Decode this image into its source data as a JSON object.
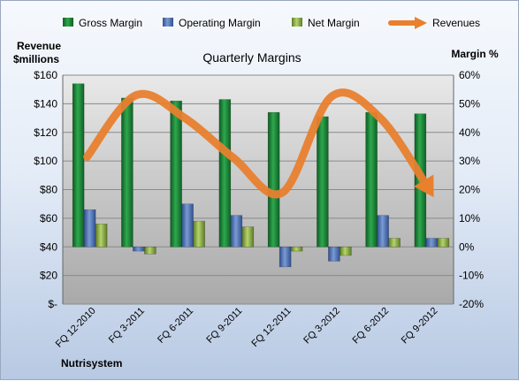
{
  "chart_data": {
    "type": "bar",
    "title": "Quarterly Margins",
    "company": "Nutrisystem",
    "left_axis_title": [
      "Revenue",
      "$millions"
    ],
    "right_axis_title": "Margin %",
    "categories": [
      "FQ 12-2010",
      "FQ 3-2011",
      "FQ 6-2011",
      "FQ 9-2011",
      "FQ 12-2011",
      "FQ 3-2012",
      "FQ 6-2012",
      "FQ 9-2012"
    ],
    "left_ticks": [
      "$-",
      "$20",
      "$40",
      "$60",
      "$80",
      "$100",
      "$120",
      "$140",
      "$160"
    ],
    "right_ticks": [
      "-20%",
      "-10%",
      "0%",
      "10%",
      "20%",
      "30%",
      "40%",
      "50%",
      "60%"
    ],
    "left_range": [
      0,
      160
    ],
    "right_range": [
      -20,
      60
    ],
    "legend_position": "top",
    "series": [
      {
        "name": "Gross Margin",
        "axis": "right",
        "color": "#1f8a3d",
        "values": [
          57,
          52,
          51,
          51.5,
          47,
          45.5,
          47,
          46.5
        ]
      },
      {
        "name": "Operating Margin",
        "axis": "right",
        "color": "#4f71b3",
        "values": [
          13,
          -1.5,
          15,
          11,
          -7,
          -5,
          11,
          3
        ]
      },
      {
        "name": "Net Margin",
        "axis": "right",
        "color": "#8eb04a",
        "values": [
          8,
          -2.5,
          9,
          7,
          -1.5,
          -3,
          3,
          3
        ]
      },
      {
        "name": "Revenues",
        "axis": "left",
        "type": "line",
        "color": "#e8802e",
        "values": [
          103,
          146,
          130,
          102,
          78,
          145,
          130,
          80
        ]
      }
    ]
  }
}
